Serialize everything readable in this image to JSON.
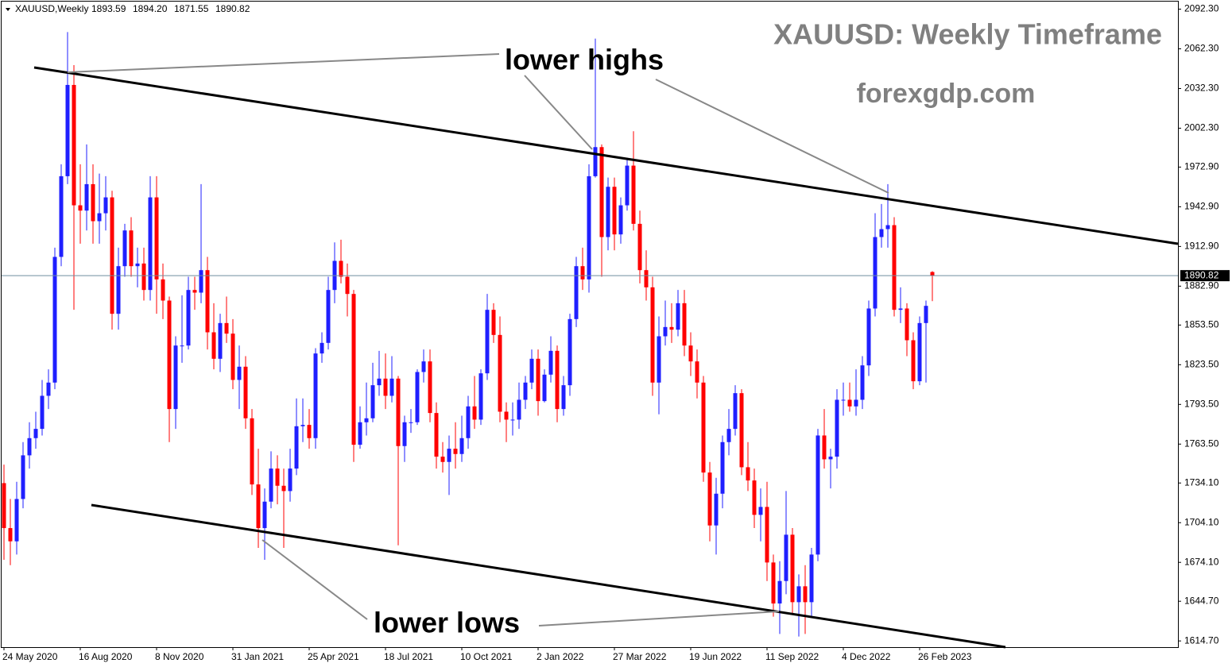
{
  "chart_data": {
    "type": "candlestick",
    "title": "XAUUSD: Weekly Timeframe",
    "subtitle": "forexgdp.com",
    "header_symbol": "XAUUSD,Weekly",
    "header_ohlc": [
      "1893.59",
      "1894.20",
      "1871.55",
      "1890.82"
    ],
    "last_price_label": "1890.82",
    "annotations": [
      "lower highs",
      "lower lows"
    ],
    "up_color": "#1f1fff",
    "down_color": "#ff0000",
    "ylim": [
      1610,
      2098
    ],
    "yticks": [
      {
        "value": 2092.3,
        "label": "2092.30"
      },
      {
        "value": 2062.3,
        "label": "2062.30"
      },
      {
        "value": 2032.3,
        "label": "2032.30"
      },
      {
        "value": 2002.3,
        "label": "2002.30"
      },
      {
        "value": 1972.9,
        "label": "1972.90"
      },
      {
        "value": 1942.9,
        "label": "1942.90"
      },
      {
        "value": 1912.9,
        "label": "1912.90"
      },
      {
        "value": 1882.9,
        "label": "1882.90"
      },
      {
        "value": 1853.5,
        "label": "1853.50"
      },
      {
        "value": 1823.5,
        "label": "1823.50"
      },
      {
        "value": 1793.5,
        "label": "1793.50"
      },
      {
        "value": 1763.5,
        "label": "1763.50"
      },
      {
        "value": 1734.1,
        "label": "1734.10"
      },
      {
        "value": 1704.1,
        "label": "1704.10"
      },
      {
        "value": 1674.1,
        "label": "1674.10"
      },
      {
        "value": 1644.7,
        "label": "1644.70"
      },
      {
        "value": 1614.7,
        "label": "1614.70"
      }
    ],
    "xticks": [
      {
        "value": 0,
        "label": "24 May 2020"
      },
      {
        "value": 12,
        "label": "16 Aug 2020"
      },
      {
        "value": 24,
        "label": "8 Nov 2020"
      },
      {
        "value": 36,
        "label": "31 Jan 2021"
      },
      {
        "value": 48,
        "label": "25 Apr 2021"
      },
      {
        "value": 60,
        "label": "18 Jul 2021"
      },
      {
        "value": 72,
        "label": "10 Oct 2021"
      },
      {
        "value": 84,
        "label": "2 Jan 2022"
      },
      {
        "value": 96,
        "label": "27 Mar 2022"
      },
      {
        "value": 108,
        "label": "19 Jun 2022"
      },
      {
        "value": 120,
        "label": "11 Sep 2022"
      },
      {
        "value": 132,
        "label": "4 Dec 2022"
      },
      {
        "value": 144,
        "label": "26 Feb 2023"
      }
    ],
    "open": [
      1734,
      1700,
      1690,
      1722,
      1755,
      1768,
      1775,
      1800,
      1810,
      1905,
      1966,
      2035,
      1944,
      1940,
      1960,
      1932,
      1938,
      1950,
      1862,
      1898,
      1925,
      1898,
      1900,
      1880,
      1950,
      1888,
      1872,
      1790,
      1838,
      1838,
      1880,
      1878,
      1895,
      1848,
      1828,
      1855,
      1847,
      1812,
      1822,
      1783,
      1733,
      1700,
      1720,
      1745,
      1732,
      1728,
      1745,
      1777,
      1778,
      1768,
      1832,
      1840,
      1880,
      1902,
      1890,
      1877,
      1763,
      1780,
      1783,
      1808,
      1813,
      1800,
      1813,
      1762,
      1780,
      1780,
      1818,
      1826,
      1787,
      1754,
      1750,
      1760,
      1756,
      1768,
      1792,
      1782,
      1817,
      1865,
      1846,
      1788,
      1782,
      1782,
      1797,
      1810,
      1828,
      1796,
      1816,
      1834,
      1790,
      1808,
      1858,
      1898,
      1888,
      1966,
      1988,
      1920,
      1958,
      1922,
      1944,
      1974,
      1930,
      1895,
      1882,
      1810,
      1845,
      1852,
      1850,
      1870,
      1838,
      1826,
      1810,
      1742,
      1702,
      1726,
      1765,
      1775,
      1802,
      1746,
      1736,
      1710,
      1716,
      1674,
      1643,
      1660,
      1695,
      1644,
      1656,
      1644,
      1680,
      1770,
      1752,
      1754,
      1797,
      1797,
      1792,
      1797,
      1823,
      1866,
      1920,
      1926,
      1929,
      1865,
      1866,
      1842,
      1811,
      1855,
      1893.59
    ],
    "high": [
      1748,
      1722,
      1735,
      1765,
      1780,
      1788,
      1812,
      1820,
      1912,
      1975,
      2075,
      2050,
      1975,
      1990,
      1975,
      1968,
      1966,
      1955,
      1912,
      1930,
      1935,
      1912,
      1912,
      1966,
      1966,
      1900,
      1875,
      1845,
      1876,
      1890,
      1890,
      1960,
      1905,
      1870,
      1862,
      1875,
      1858,
      1838,
      1830,
      1790,
      1760,
      1730,
      1758,
      1755,
      1745,
      1760,
      1798,
      1798,
      1790,
      1836,
      1848,
      1890,
      1916,
      1918,
      1900,
      1880,
      1792,
      1810,
      1825,
      1834,
      1832,
      1830,
      1815,
      1785,
      1790,
      1820,
      1835,
      1835,
      1795,
      1765,
      1770,
      1780,
      1785,
      1800,
      1815,
      1820,
      1877,
      1870,
      1860,
      1795,
      1795,
      1810,
      1815,
      1835,
      1835,
      1820,
      1845,
      1838,
      1815,
      1862,
      1905,
      1912,
      1975,
      2070,
      1990,
      1965,
      1965,
      1950,
      1980,
      2000,
      1940,
      1910,
      1890,
      1860,
      1872,
      1870,
      1880,
      1880,
      1848,
      1835,
      1815,
      1750,
      1738,
      1770,
      1790,
      1808,
      1805,
      1765,
      1745,
      1730,
      1735,
      1680,
      1675,
      1728,
      1700,
      1665,
      1672,
      1685,
      1775,
      1790,
      1760,
      1805,
      1810,
      1810,
      1820,
      1830,
      1872,
      1938,
      1945,
      1960,
      1935,
      1882,
      1870,
      1848,
      1860,
      1872,
      1894.2
    ],
    "low": [
      1676,
      1672,
      1680,
      1715,
      1745,
      1760,
      1770,
      1790,
      1805,
      1898,
      1960,
      1865,
      1915,
      1925,
      1915,
      1915,
      1925,
      1850,
      1850,
      1890,
      1890,
      1882,
      1872,
      1872,
      1862,
      1858,
      1765,
      1775,
      1825,
      1835,
      1865,
      1870,
      1835,
      1820,
      1818,
      1840,
      1805,
      1790,
      1775,
      1725,
      1685,
      1676,
      1715,
      1718,
      1685,
      1720,
      1740,
      1765,
      1760,
      1760,
      1825,
      1835,
      1870,
      1885,
      1860,
      1750,
      1760,
      1770,
      1780,
      1800,
      1790,
      1795,
      1687,
      1750,
      1772,
      1778,
      1810,
      1780,
      1745,
      1742,
      1725,
      1745,
      1750,
      1760,
      1775,
      1778,
      1812,
      1840,
      1780,
      1765,
      1770,
      1775,
      1790,
      1805,
      1785,
      1795,
      1810,
      1780,
      1785,
      1800,
      1852,
      1880,
      1878,
      1965,
      1890,
      1910,
      1910,
      1915,
      1940,
      1925,
      1885,
      1872,
      1800,
      1786,
      1838,
      1840,
      1845,
      1830,
      1815,
      1798,
      1735,
      1690,
      1680,
      1715,
      1755,
      1770,
      1740,
      1728,
      1700,
      1690,
      1660,
      1633,
      1620,
      1650,
      1635,
      1618,
      1620,
      1632,
      1675,
      1745,
      1730,
      1745,
      1785,
      1788,
      1785,
      1790,
      1815,
      1860,
      1912,
      1912,
      1860,
      1855,
      1830,
      1805,
      1808,
      1810,
      1871.55
    ],
    "close": [
      1700,
      1690,
      1722,
      1755,
      1768,
      1775,
      1800,
      1810,
      1905,
      1966,
      2035,
      1944,
      1940,
      1960,
      1932,
      1938,
      1950,
      1862,
      1898,
      1925,
      1898,
      1900,
      1880,
      1950,
      1888,
      1872,
      1790,
      1838,
      1838,
      1880,
      1878,
      1895,
      1848,
      1828,
      1855,
      1847,
      1812,
      1822,
      1783,
      1733,
      1700,
      1720,
      1745,
      1732,
      1728,
      1745,
      1777,
      1778,
      1768,
      1832,
      1840,
      1880,
      1902,
      1890,
      1877,
      1763,
      1780,
      1783,
      1808,
      1813,
      1800,
      1813,
      1762,
      1780,
      1780,
      1818,
      1826,
      1787,
      1754,
      1750,
      1760,
      1756,
      1768,
      1792,
      1782,
      1817,
      1865,
      1846,
      1788,
      1782,
      1782,
      1797,
      1810,
      1828,
      1796,
      1816,
      1834,
      1790,
      1808,
      1858,
      1898,
      1888,
      1966,
      1988,
      1920,
      1958,
      1922,
      1944,
      1974,
      1930,
      1895,
      1882,
      1810,
      1845,
      1852,
      1850,
      1870,
      1838,
      1826,
      1810,
      1742,
      1702,
      1726,
      1765,
      1775,
      1802,
      1746,
      1736,
      1710,
      1716,
      1674,
      1643,
      1660,
      1695,
      1644,
      1656,
      1644,
      1680,
      1770,
      1752,
      1754,
      1797,
      1797,
      1792,
      1797,
      1823,
      1866,
      1920,
      1926,
      1929,
      1865,
      1866,
      1842,
      1811,
      1855,
      1868,
      1890.82
    ]
  }
}
